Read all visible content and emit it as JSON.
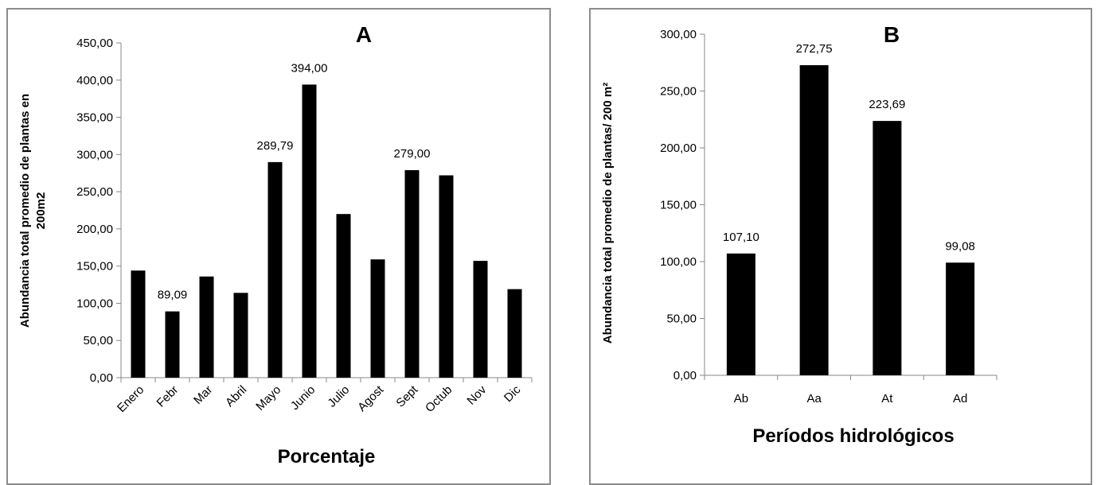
{
  "chart_data": [
    {
      "type": "bar",
      "letter": "A",
      "title": "",
      "xlabel": "Porcentaje",
      "ylabel_lines": [
        "Abundancia total promedio de plantas en",
        "200m2"
      ],
      "ylim": [
        0,
        450
      ],
      "yticks": [
        "0,00",
        "50,00",
        "100,00",
        "150,00",
        "200,00",
        "250,00",
        "300,00",
        "350,00",
        "400,00",
        "450,00"
      ],
      "categories": [
        "Enero",
        "Febr",
        "Mar",
        "Abril",
        "Mayo",
        "Junio",
        "Julio",
        "Agost",
        "Sept",
        "Octub",
        "Nov",
        "Dic"
      ],
      "values": [
        144,
        89.09,
        136,
        114,
        289.79,
        394.0,
        220,
        159,
        279.0,
        272,
        157,
        119
      ],
      "data_labels": [
        "",
        "89,09",
        "",
        "",
        "289,79",
        "394,00",
        "",
        "",
        "279,00",
        "",
        "",
        ""
      ],
      "bar_color": "#000000",
      "grid": false,
      "legend": "none"
    },
    {
      "type": "bar",
      "letter": "B",
      "title": "",
      "xlabel": "Períodos hidrológicos",
      "ylabel_lines": [
        "Abundancia total promedio de plantas/ 200 m²"
      ],
      "ylim": [
        0,
        300
      ],
      "yticks": [
        "0,00",
        "50,00",
        "100,00",
        "150,00",
        "200,00",
        "250,00",
        "300,00"
      ],
      "categories": [
        "Ab",
        "Aa",
        "At",
        "Ad"
      ],
      "values": [
        107.1,
        272.75,
        223.69,
        99.08
      ],
      "data_labels": [
        "107,10",
        "272,75",
        "223,69",
        "99,08"
      ],
      "bar_color": "#000000",
      "grid": false,
      "legend": "none"
    }
  ]
}
